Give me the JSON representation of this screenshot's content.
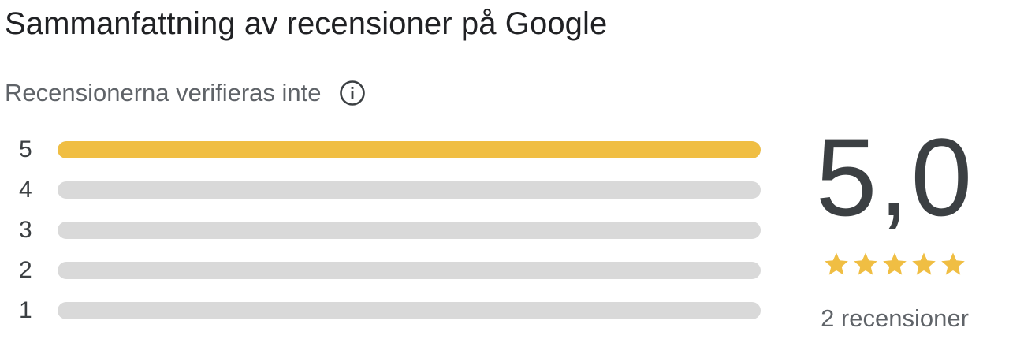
{
  "header": {
    "title": "Sammanfattning av recensioner på Google",
    "subtitle": "Recensionerna verifieras inte"
  },
  "icons": {
    "info": "info-icon",
    "star": "star-icon"
  },
  "colors": {
    "bar_fill": "#f0be43",
    "bar_track": "#d9d9d9",
    "star": "#f0be43"
  },
  "distribution": [
    {
      "label": "5",
      "fraction": 1.0
    },
    {
      "label": "4",
      "fraction": 0.0
    },
    {
      "label": "3",
      "fraction": 0.0
    },
    {
      "label": "2",
      "fraction": 0.0
    },
    {
      "label": "1",
      "fraction": 0.0
    }
  ],
  "summary": {
    "score": "5,0",
    "stars_filled": 5,
    "stars_total": 5,
    "review_count": "2 recensioner"
  }
}
